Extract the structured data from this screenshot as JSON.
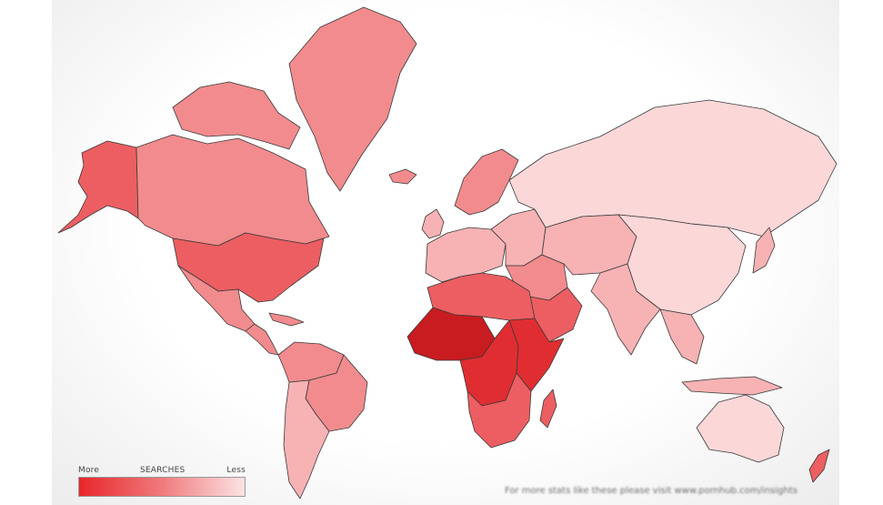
{
  "legend": {
    "more_label": "More",
    "title": "SEARCHES",
    "less_label": "Less",
    "gradient": [
      "#e8272b",
      "#f07a7c",
      "#fbe3e3"
    ]
  },
  "footer": {
    "note": "For more stats like these please visit www.pornhub.com/insights"
  },
  "colors": {
    "ocean": "#ffffff",
    "border": "#3a3a3a",
    "level_1": "#fbd7d8",
    "level_2": "#f7b2b4",
    "level_3": "#f28b8d",
    "level_4": "#ec5e61",
    "level_5": "#e02d31",
    "level_6": "#c81c20"
  },
  "regions": [
    {
      "name": "alaska",
      "level": 4
    },
    {
      "name": "canada",
      "level": 3
    },
    {
      "name": "canadian-arctic-islands",
      "level": 3
    },
    {
      "name": "greenland",
      "level": 3
    },
    {
      "name": "iceland",
      "level": 3
    },
    {
      "name": "united-states",
      "level": 4
    },
    {
      "name": "mexico",
      "level": 3
    },
    {
      "name": "central-america",
      "level": 3
    },
    {
      "name": "caribbean",
      "level": 3
    },
    {
      "name": "south-america-north",
      "level": 3
    },
    {
      "name": "brazil",
      "level": 3
    },
    {
      "name": "south-america-south",
      "level": 2
    },
    {
      "name": "scandinavia",
      "level": 3
    },
    {
      "name": "western-europe",
      "level": 2
    },
    {
      "name": "eastern-europe",
      "level": 2
    },
    {
      "name": "uk-ireland",
      "level": 2
    },
    {
      "name": "russia",
      "level": 1
    },
    {
      "name": "middle-east",
      "level": 3
    },
    {
      "name": "arabian-peninsula",
      "level": 4
    },
    {
      "name": "central-asia",
      "level": 2
    },
    {
      "name": "china",
      "level": 1
    },
    {
      "name": "india",
      "level": 2
    },
    {
      "name": "southeast-asia",
      "level": 2
    },
    {
      "name": "indonesia",
      "level": 2
    },
    {
      "name": "japan",
      "level": 2
    },
    {
      "name": "north-africa",
      "level": 4
    },
    {
      "name": "west-africa",
      "level": 6
    },
    {
      "name": "central-africa",
      "level": 5
    },
    {
      "name": "east-africa",
      "level": 5
    },
    {
      "name": "southern-africa",
      "level": 4
    },
    {
      "name": "madagascar",
      "level": 4
    },
    {
      "name": "australia",
      "level": 1
    },
    {
      "name": "new-zealand",
      "level": 4
    }
  ]
}
